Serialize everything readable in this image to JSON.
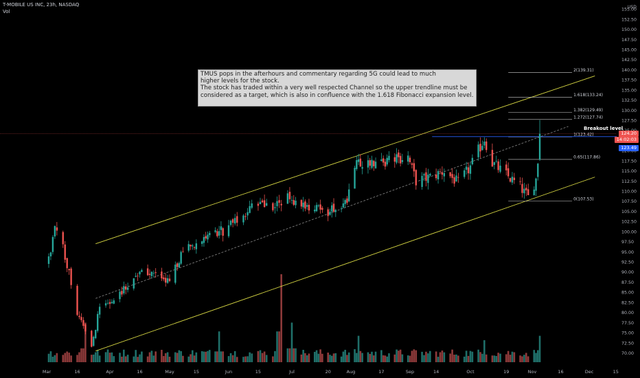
{
  "header": {
    "symbol_line": "T-MOBILE US INC, 23h, NASDAQ",
    "volume_label": "Vol"
  },
  "price_axis": {
    "currency": "USD",
    "labels": [
      "155.00",
      "152.50",
      "150.00",
      "147.50",
      "145.00",
      "142.50",
      "140.00",
      "137.50",
      "135.00",
      "132.50",
      "130.00",
      "127.50",
      "125.00",
      "122.50",
      "120.00",
      "117.50",
      "115.00",
      "112.50",
      "110.00",
      "107.50",
      "105.00",
      "102.50",
      "100.00",
      "97.50",
      "95.00",
      "92.50",
      "90.00",
      "87.50",
      "85.00",
      "82.50",
      "80.00",
      "77.50",
      "75.00",
      "72.50",
      "70.00"
    ]
  },
  "time_axis": {
    "labels": [
      "Mar",
      "16",
      "Apr",
      "16",
      "May",
      "15",
      "Jun",
      "15",
      "Jul",
      "20",
      "Aug",
      "17",
      "Sep",
      "14",
      "Oct",
      "19",
      "Nov",
      "16",
      "Dec",
      "15"
    ]
  },
  "price_tags": {
    "last_price": "124.20",
    "countdown": "14:02:03",
    "breakout_price": "123.49",
    "breakout_label": "Breakout level",
    "last_color": "#ef5350",
    "breakout_color": "#2962ff"
  },
  "annotation": {
    "text": " TMUS pops in the afterhours and commentary regarding 5G could lead to much\nhigher levels for the stock.\nThe stock has traded within a very well respected Channel so the upper trendline must be\nconsidered as a target, which is also in confluence with the 1.618 Fibonacci expansion level."
  },
  "fib_levels": [
    {
      "label": "2(139.31)",
      "price": 139.31
    },
    {
      "label": "1.618(133.24)",
      "price": 133.24
    },
    {
      "label": "1.382(129.49)",
      "price": 129.49
    },
    {
      "label": "1.272(127.74)",
      "price": 127.74
    },
    {
      "label": "1(123.42)",
      "price": 123.42
    },
    {
      "label": "0.65(117.86)",
      "price": 117.86
    },
    {
      "label": "0(107.53)",
      "price": 107.53
    }
  ],
  "colors": {
    "up": "#26a69a",
    "down": "#ef5350",
    "channel": "#d7d743",
    "vol_up": "#1f6f69",
    "vol_down": "#8e3a3a"
  },
  "chart_data": {
    "type": "candlestick",
    "title": "T-MOBILE US INC, 23h, NASDAQ",
    "ylabel": "USD",
    "ylim": [
      68.5,
      156.5
    ],
    "grid": false,
    "close_anchors": [
      {
        "month": "Mar",
        "day": 2,
        "close": 93.0
      },
      {
        "month": "Mar",
        "day": 5,
        "close": 100.5
      },
      {
        "month": "Mar",
        "day": 9,
        "close": 96.0
      },
      {
        "month": "Mar",
        "day": 12,
        "close": 90.0
      },
      {
        "month": "Mar",
        "day": 16,
        "close": 80.0
      },
      {
        "month": "Mar",
        "day": 20,
        "close": 74.5
      },
      {
        "month": "Mar",
        "day": 23,
        "close": 72.0
      },
      {
        "month": "Mar",
        "day": 27,
        "close": 81.0
      },
      {
        "month": "Apr",
        "day": 3,
        "close": 83.5
      },
      {
        "month": "Apr",
        "day": 10,
        "close": 87.0
      },
      {
        "month": "Apr",
        "day": 17,
        "close": 91.0
      },
      {
        "month": "Apr",
        "day": 24,
        "close": 89.0
      },
      {
        "month": "May",
        "day": 1,
        "close": 87.5
      },
      {
        "month": "May",
        "day": 8,
        "close": 95.0
      },
      {
        "month": "May",
        "day": 15,
        "close": 97.5
      },
      {
        "month": "May",
        "day": 22,
        "close": 98.5
      },
      {
        "month": "Jun",
        "day": 1,
        "close": 101.0
      },
      {
        "month": "Jun",
        "day": 8,
        "close": 104.0
      },
      {
        "month": "Jun",
        "day": 15,
        "close": 107.5
      },
      {
        "month": "Jun",
        "day": 22,
        "close": 106.0
      },
      {
        "month": "Jun",
        "day": 29,
        "close": 108.5
      },
      {
        "month": "Jul",
        "day": 6,
        "close": 107.0
      },
      {
        "month": "Jul",
        "day": 13,
        "close": 106.0
      },
      {
        "month": "Jul",
        "day": 20,
        "close": 104.5
      },
      {
        "month": "Jul",
        "day": 27,
        "close": 107.0
      },
      {
        "month": "Jul",
        "day": 31,
        "close": 109.0
      },
      {
        "month": "Aug",
        "day": 3,
        "close": 116.0
      },
      {
        "month": "Aug",
        "day": 10,
        "close": 117.5
      },
      {
        "month": "Aug",
        "day": 17,
        "close": 117.0
      },
      {
        "month": "Aug",
        "day": 24,
        "close": 118.0
      },
      {
        "month": "Aug",
        "day": 31,
        "close": 118.5
      },
      {
        "month": "Sep",
        "day": 4,
        "close": 112.5
      },
      {
        "month": "Sep",
        "day": 11,
        "close": 113.5
      },
      {
        "month": "Sep",
        "day": 18,
        "close": 115.0
      },
      {
        "month": "Sep",
        "day": 25,
        "close": 112.0
      },
      {
        "month": "Oct",
        "day": 1,
        "close": 116.0
      },
      {
        "month": "Oct",
        "day": 8,
        "close": 123.0
      },
      {
        "month": "Oct",
        "day": 12,
        "close": 117.0
      },
      {
        "month": "Oct",
        "day": 19,
        "close": 114.0
      },
      {
        "month": "Oct",
        "day": 26,
        "close": 111.0
      },
      {
        "month": "Oct",
        "day": 30,
        "close": 108.5
      },
      {
        "month": "Nov",
        "day": 3,
        "close": 113.0
      },
      {
        "month": "Nov",
        "day": 4,
        "close": 117.5
      },
      {
        "month": "Nov",
        "day": 5,
        "close": 124.2
      }
    ],
    "volume_spikes": [
      {
        "month": "Jun",
        "day": 26,
        "level": 1.0
      },
      {
        "month": "Jul",
        "day": 1,
        "level": 0.45
      },
      {
        "month": "Mar",
        "day": 20,
        "level": 0.45
      },
      {
        "month": "May",
        "day": 27,
        "level": 0.35
      },
      {
        "month": "Aug",
        "day": 5,
        "level": 0.3
      },
      {
        "month": "Oct",
        "day": 8,
        "level": 0.25
      },
      {
        "month": "Nov",
        "day": 5,
        "level": 0.3
      }
    ],
    "channel": {
      "upper": [
        {
          "month": "Mar",
          "day": 25,
          "price": 97.0
        },
        {
          "month": "Dec",
          "day": 4,
          "price": 138.5
        }
      ],
      "lower": [
        {
          "month": "Mar",
          "day": 25,
          "price": 70.5
        },
        {
          "month": "Dec",
          "day": 4,
          "price": 113.5
        }
      ],
      "middle": [
        {
          "month": "Mar",
          "day": 25,
          "price": 83.5
        },
        {
          "month": "Nov",
          "day": 20,
          "price": 126.0
        }
      ]
    },
    "breakout_level": 123.49,
    "last_price": 124.2
  }
}
